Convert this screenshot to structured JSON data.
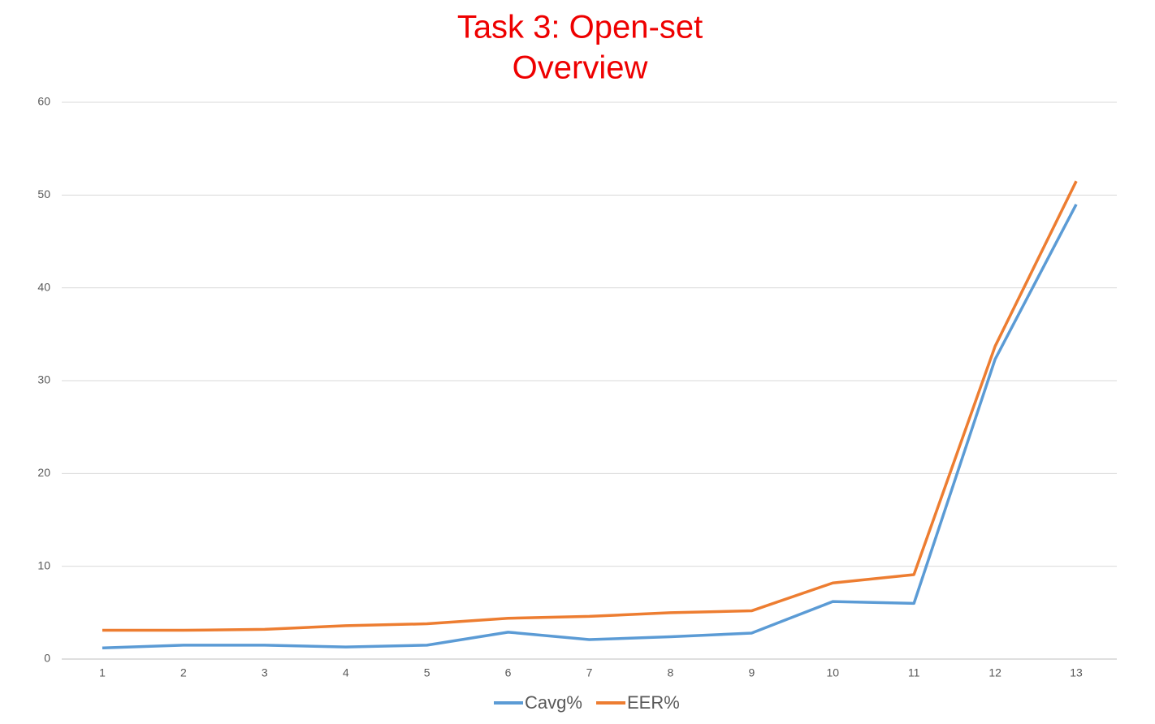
{
  "chart_data": {
    "type": "line",
    "title": [
      "Task 3: Open-set",
      "Overview"
    ],
    "title_color": "#ee0000",
    "categories": [
      "1",
      "2",
      "3",
      "4",
      "5",
      "6",
      "7",
      "8",
      "9",
      "10",
      "11",
      "12",
      "13"
    ],
    "series": [
      {
        "name": "Cavg%",
        "color": "#5b9bd5",
        "values": [
          1.2,
          1.5,
          1.5,
          1.3,
          1.5,
          2.9,
          2.1,
          2.4,
          2.8,
          6.2,
          6.0,
          32.3,
          49.0
        ]
      },
      {
        "name": "EER%",
        "color": "#ed7d31",
        "values": [
          3.1,
          3.1,
          3.2,
          3.6,
          3.8,
          4.4,
          4.6,
          5.0,
          5.2,
          8.2,
          9.1,
          33.7,
          51.5
        ]
      }
    ],
    "ylim": [
      0,
      60
    ],
    "yticks": [
      0,
      10,
      20,
      30,
      40,
      50,
      60
    ],
    "grid": true,
    "legend": "bottom"
  }
}
